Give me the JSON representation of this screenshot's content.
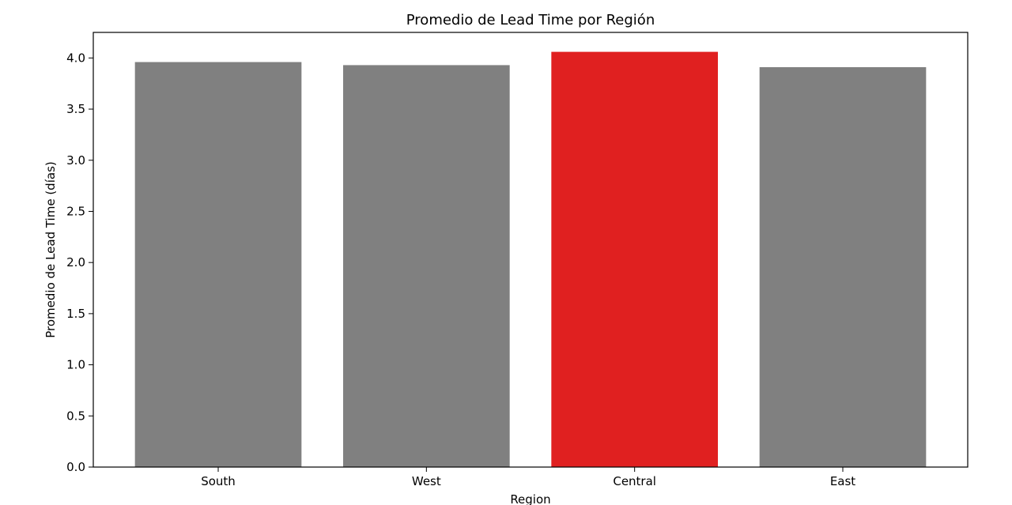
{
  "chart_data": {
    "type": "bar",
    "title": "Promedio de Lead Time por Región",
    "xlabel": "Region",
    "ylabel": "Promedio de Lead Time (días)",
    "categories": [
      "South",
      "West",
      "Central",
      "East"
    ],
    "values": [
      3.96,
      3.93,
      4.06,
      3.91
    ],
    "ylim": [
      0,
      4.25
    ],
    "yticks": [
      0.0,
      0.5,
      1.0,
      1.5,
      2.0,
      2.5,
      3.0,
      3.5,
      4.0
    ],
    "ytick_labels": [
      "0.0",
      "0.5",
      "1.0",
      "1.5",
      "2.0",
      "2.5",
      "3.0",
      "3.5",
      "4.0"
    ],
    "bar_colors": [
      "#808080",
      "#808080",
      "#e02020",
      "#808080"
    ],
    "highlight_category": "Central",
    "grid": false,
    "legend": "none"
  }
}
